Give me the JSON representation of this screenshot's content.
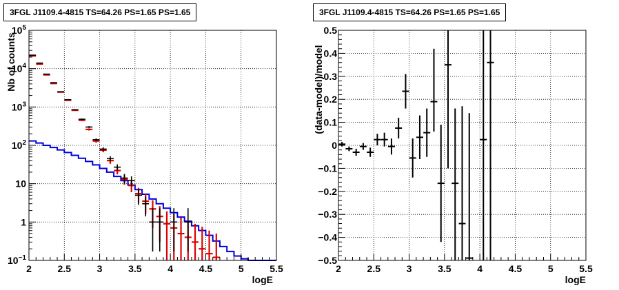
{
  "colors": {
    "data": "#000000",
    "model": "#dd0000",
    "component": "#0000dd",
    "grid": "#000000"
  },
  "chart_data": [
    {
      "type": "histogram",
      "title": "3FGL J1109.4-4815 TS=64.26 PS=1.65 PS=1.65",
      "xlabel": "logE",
      "ylabel": "Nb of counts",
      "xlim": [
        2,
        5.5
      ],
      "ylim": [
        0.1,
        100000
      ],
      "yscale": "log",
      "grid": true,
      "xticks": [
        "2",
        "2.5",
        "3",
        "3.5",
        "4",
        "4.5",
        "5",
        "5.5"
      ],
      "yticks": [
        "10^-1",
        "1",
        "10",
        "10^2",
        "10^3",
        "10^4",
        "10^5"
      ],
      "bin_edges": [
        2.0,
        2.1,
        2.2,
        2.3,
        2.4,
        2.5,
        2.6,
        2.7,
        2.8,
        2.9,
        3.0,
        3.1,
        3.2,
        3.3,
        3.4,
        3.5,
        3.6,
        3.7,
        3.8,
        3.9,
        4.0,
        4.1,
        4.2,
        4.3,
        4.4,
        4.5,
        4.6,
        4.7,
        4.8,
        4.9,
        5.0,
        5.1,
        5.2,
        5.3,
        5.4,
        5.5
      ],
      "series": [
        {
          "kind": "data_points",
          "x": [
            2.05,
            2.15,
            2.25,
            2.35,
            2.45,
            2.55,
            2.65,
            2.75,
            2.85,
            2.95,
            3.05,
            3.15,
            3.25,
            3.35,
            3.45,
            3.55,
            3.65,
            3.75,
            3.85,
            4.05,
            4.25
          ],
          "y": [
            22500,
            14000,
            7200,
            4300,
            2500,
            1550,
            850,
            480,
            300,
            140,
            80,
            45,
            27,
            14,
            12,
            5,
            3,
            1,
            1,
            1,
            1
          ],
          "ylow": [
            22350,
            13880,
            7115,
            4235,
            2450,
            1510,
            821,
            458,
            283,
            128,
            71,
            38,
            22,
            10,
            8.5,
            2.8,
            1.4,
            0.17,
            0.17,
            0.17,
            0.17
          ],
          "yhigh": [
            22650,
            14120,
            7285,
            4365,
            2550,
            1590,
            879,
            502,
            317,
            152,
            89,
            52,
            32,
            18,
            15.5,
            7.2,
            4.6,
            2.3,
            2.3,
            2.3,
            2.3
          ]
        },
        {
          "kind": "model_points",
          "x": [
            2.05,
            2.15,
            2.25,
            2.35,
            2.45,
            2.55,
            2.65,
            2.75,
            2.85,
            2.95,
            3.05,
            3.15,
            3.25,
            3.35,
            3.45,
            3.55,
            3.65,
            3.75,
            3.85,
            3.95,
            4.05,
            4.15,
            4.25,
            4.35,
            4.45,
            4.55,
            4.65
          ],
          "y": [
            21500,
            13200,
            6900,
            4100,
            2450,
            1500,
            820,
            450,
            260,
            130,
            75,
            40,
            22,
            13,
            9,
            5.5,
            3.5,
            2.2,
            1.4,
            0.9,
            0.7,
            0.5,
            0.4,
            0.3,
            0.2,
            0.15,
            0.12
          ],
          "ylow": [
            21350,
            13080,
            6815,
            4035,
            2400,
            1460,
            791,
            428,
            243,
            118,
            66,
            33,
            17.5,
            9.4,
            6,
            3.2,
            1.6,
            0.7,
            0.3,
            0.1,
            0.1,
            0.1,
            0.1,
            0.1,
            0.1,
            0.1,
            0.1
          ],
          "yhigh": [
            21650,
            13320,
            6985,
            4165,
            2500,
            1540,
            849,
            472,
            277,
            142,
            84,
            47,
            26.5,
            16.6,
            12,
            7.8,
            5.4,
            3.7,
            2.6,
            1.9,
            1.6,
            1.3,
            1.1,
            0.9,
            0.75,
            0.6,
            0.5
          ]
        },
        {
          "kind": "component_step",
          "values": [
            130,
            115,
            100,
            88,
            76,
            65,
            55,
            46,
            38,
            31,
            25,
            20,
            15.5,
            12,
            9.2,
            7,
            5.3,
            4,
            3,
            2.3,
            1.75,
            1.35,
            1.05,
            0.8,
            0.6,
            0.45,
            0.32,
            0.23,
            0.17,
            0.13,
            0.11,
            0.1,
            0.1,
            0.1,
            0.1
          ]
        }
      ]
    },
    {
      "type": "scatter",
      "title": "3FGL J1109.4-4815 TS=64.26 PS=1.65 PS=1.65",
      "xlabel": "logE",
      "ylabel": "(data-model)/model",
      "xlim": [
        2,
        5.5
      ],
      "ylim": [
        -0.5,
        0.5
      ],
      "grid": true,
      "xticks": [
        "2",
        "2.5",
        "3",
        "3.5",
        "4",
        "4.5",
        "5",
        "5.5"
      ],
      "yticks": [
        "−0.5",
        "−0.4",
        "−0.3",
        "−0.2",
        "−0.1",
        "0",
        "0.1",
        "0.2",
        "0.3",
        "0.4",
        "0.5"
      ],
      "x": [
        2.05,
        2.15,
        2.25,
        2.35,
        2.45,
        2.55,
        2.65,
        2.75,
        2.85,
        2.95,
        3.05,
        3.15,
        3.25,
        3.35,
        3.45,
        3.55,
        3.65,
        3.75,
        3.85,
        4.05,
        4.15
      ],
      "y": [
        0.005,
        -0.015,
        -0.03,
        -0.005,
        -0.03,
        0.025,
        0.025,
        -0.005,
        0.075,
        0.235,
        -0.055,
        0.035,
        0.055,
        0.19,
        -0.165,
        0.35,
        -0.165,
        -0.34,
        -0.49,
        0.025,
        0.36
      ],
      "ylow": [
        -0.005,
        -0.025,
        -0.045,
        -0.02,
        -0.05,
        0.0,
        -0.005,
        -0.04,
        0.03,
        0.16,
        -0.14,
        -0.06,
        -0.05,
        0.06,
        -0.42,
        -0.1,
        -0.5,
        -0.5,
        -0.5,
        -0.5,
        -0.5
      ],
      "yhigh": [
        0.015,
        -0.005,
        -0.015,
        0.01,
        -0.01,
        0.05,
        0.055,
        0.03,
        0.12,
        0.31,
        0.03,
        0.13,
        0.16,
        0.42,
        0.09,
        0.5,
        0.16,
        0.17,
        0.14,
        0.5,
        0.5
      ]
    }
  ]
}
